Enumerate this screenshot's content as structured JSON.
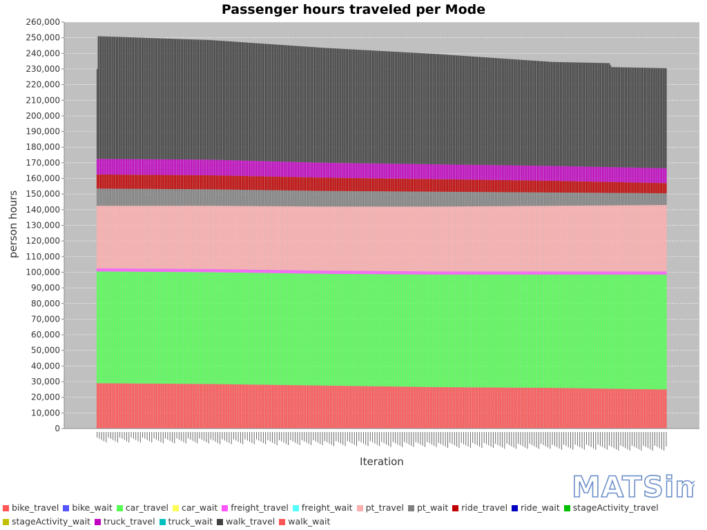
{
  "chart_data": {
    "type": "bar",
    "stacked": true,
    "title": "Passenger hours traveled per Mode",
    "xlabel": "Iteration",
    "ylabel": "person hours",
    "ylim": [
      0,
      260000
    ],
    "y_ticks": [
      "0",
      "10,000",
      "20,000",
      "30,000",
      "40,000",
      "50,000",
      "60,000",
      "70,000",
      "80,000",
      "90,000",
      "100,000",
      "110,000",
      "120,000",
      "130,000",
      "140,000",
      "150,000",
      "160,000",
      "170,000",
      "180,000",
      "190,000",
      "200,000",
      "210,000",
      "220,000",
      "230,000",
      "240,000",
      "250,000",
      "260,000"
    ],
    "grid": true,
    "background": "#c0c0c0",
    "legend_position": "bottom",
    "x_range": [
      0,
      500
    ],
    "x_tick_labels_legible": false,
    "series": [
      {
        "name": "bike_travel",
        "color": "#ff5555",
        "points": [
          [
            0,
            29000
          ],
          [
            100,
            28500
          ],
          [
            200,
            27500
          ],
          [
            300,
            26500
          ],
          [
            400,
            26000
          ],
          [
            450,
            25500
          ],
          [
            500,
            25000
          ]
        ]
      },
      {
        "name": "bike_wait",
        "color": "#5555ff",
        "points": [
          [
            0,
            0
          ],
          [
            500,
            0
          ]
        ]
      },
      {
        "name": "car_travel",
        "color": "#55ff55",
        "points": [
          [
            0,
            71500
          ],
          [
            100,
            71500
          ],
          [
            200,
            71500
          ],
          [
            300,
            72000
          ],
          [
            400,
            72500
          ],
          [
            450,
            73000
          ],
          [
            500,
            73500
          ]
        ]
      },
      {
        "name": "car_wait",
        "color": "#ffff55",
        "points": [
          [
            0,
            0
          ],
          [
            500,
            0
          ]
        ]
      },
      {
        "name": "freight_travel",
        "color": "#ff55ff",
        "points": [
          [
            0,
            2000
          ],
          [
            100,
            2000
          ],
          [
            200,
            2000
          ],
          [
            300,
            2000
          ],
          [
            400,
            2000
          ],
          [
            500,
            2000
          ]
        ]
      },
      {
        "name": "freight_wait",
        "color": "#55ffff",
        "points": [
          [
            0,
            0
          ],
          [
            500,
            0
          ]
        ]
      },
      {
        "name": "pt_travel",
        "color": "#ffafaf",
        "points": [
          [
            0,
            40000
          ],
          [
            100,
            40500
          ],
          [
            200,
            41000
          ],
          [
            300,
            41500
          ],
          [
            400,
            42000
          ],
          [
            500,
            42500
          ]
        ]
      },
      {
        "name": "pt_wait",
        "color": "#808080",
        "points": [
          [
            0,
            11000
          ],
          [
            100,
            10500
          ],
          [
            200,
            10000
          ],
          [
            300,
            9500
          ],
          [
            400,
            8500
          ],
          [
            450,
            8000
          ],
          [
            500,
            7500
          ]
        ]
      },
      {
        "name": "ride_travel",
        "color": "#c00000",
        "points": [
          [
            0,
            9000
          ],
          [
            100,
            9000
          ],
          [
            200,
            8500
          ],
          [
            300,
            8000
          ],
          [
            400,
            7500
          ],
          [
            450,
            7000
          ],
          [
            500,
            6500
          ]
        ]
      },
      {
        "name": "ride_wait",
        "color": "#0000c0",
        "points": [
          [
            0,
            0
          ],
          [
            500,
            0
          ]
        ]
      },
      {
        "name": "stageActivity_travel",
        "color": "#00c000",
        "points": [
          [
            0,
            0
          ],
          [
            500,
            0
          ]
        ]
      },
      {
        "name": "stageActivity_wait",
        "color": "#c0c000",
        "points": [
          [
            0,
            0
          ],
          [
            500,
            0
          ]
        ]
      },
      {
        "name": "truck_travel",
        "color": "#c000c0",
        "points": [
          [
            0,
            10000
          ],
          [
            100,
            10000
          ],
          [
            200,
            9500
          ],
          [
            300,
            9500
          ],
          [
            400,
            9500
          ],
          [
            450,
            9500
          ],
          [
            500,
            9500
          ]
        ]
      },
      {
        "name": "truck_wait",
        "color": "#00c0c0",
        "points": [
          [
            0,
            0
          ],
          [
            500,
            0
          ]
        ]
      },
      {
        "name": "walk_travel",
        "color": "#404040",
        "points": [
          [
            0,
            78500
          ],
          [
            100,
            76500
          ],
          [
            200,
            73500
          ],
          [
            300,
            70500
          ],
          [
            400,
            66500
          ],
          [
            450,
            66500
          ],
          [
            452,
            64000
          ],
          [
            500,
            64000
          ]
        ]
      },
      {
        "name": "walk_wait",
        "color": "#ff5555",
        "points": [
          [
            0,
            0
          ],
          [
            500,
            0
          ]
        ]
      }
    ]
  },
  "logo": {
    "text": "MATSim"
  }
}
